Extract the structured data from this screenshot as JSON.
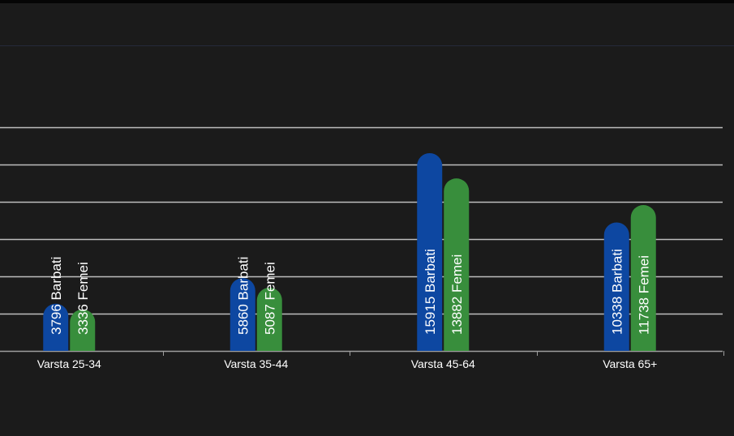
{
  "colors": {
    "background": "#1b1b1b",
    "men": "#0d47a1",
    "women": "#388e3c",
    "grid": "#bdbdbd",
    "axis": "#9e9e9e",
    "label": "#ffffff"
  },
  "chart_data": {
    "type": "bar",
    "categories": [
      "Varsta 25-34",
      "Varsta 35-44",
      "Varsta 45-64",
      "Varsta 65+"
    ],
    "series": [
      {
        "name": "Barbati",
        "values": [
          3796,
          5860,
          15915,
          10338
        ]
      },
      {
        "name": "Femei",
        "values": [
          3336,
          5087,
          13882,
          11738
        ]
      }
    ],
    "data_labels": [
      [
        "3796 Barbati",
        "3336 Femei"
      ],
      [
        "5860 Barbati",
        "5087 Femei"
      ],
      [
        "15915 Barbati",
        "13882 Femei"
      ],
      [
        "10338 Barbati",
        "11738 Femei"
      ]
    ],
    "ylim": [
      0,
      18000
    ],
    "grid": true,
    "legend": "none",
    "bar_shape": "rounded-top"
  }
}
